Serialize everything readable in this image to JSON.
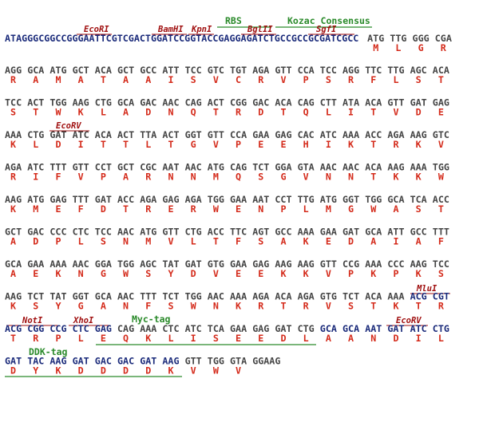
{
  "sequence_map": {
    "leader": {
      "sequence": "ATAGGGCGGCCGGGAATTCGTCGACTGGATCCGGTACCGAGGAGATCTGCCGCCGCGATCGCC",
      "codons": [
        "ATG",
        "TTG",
        "GGG",
        "CGA"
      ],
      "amino_acids": [
        "M",
        "L",
        "G",
        "R"
      ]
    },
    "rows": [
      {
        "codons": [
          "AGG",
          "GCA",
          "ATG",
          "GCT",
          "ACA",
          "GCT",
          "GCC",
          "ATT",
          "TCC",
          "GTC",
          "TGT",
          "AGA",
          "GTT",
          "CCA",
          "TCC",
          "AGG",
          "TTC",
          "TTG",
          "AGC",
          "ACA"
        ],
        "amino_acids": [
          "R",
          "A",
          "M",
          "A",
          "T",
          "A",
          "A",
          "I",
          "S",
          "V",
          "C",
          "R",
          "V",
          "P",
          "S",
          "R",
          "F",
          "L",
          "S",
          "T"
        ]
      },
      {
        "codons": [
          "TCC",
          "ACT",
          "TGG",
          "AAG",
          "CTG",
          "GCA",
          "GAC",
          "AAC",
          "CAG",
          "ACT",
          "CGG",
          "GAC",
          "ACA",
          "CAG",
          "CTT",
          "ATA",
          "ACA",
          "GTT",
          "GAT",
          "GAG"
        ],
        "amino_acids": [
          "S",
          "T",
          "W",
          "K",
          "L",
          "A",
          "D",
          "N",
          "Q",
          "T",
          "R",
          "D",
          "T",
          "Q",
          "L",
          "I",
          "T",
          "V",
          "D",
          "E"
        ]
      },
      {
        "codons": [
          "AAA",
          "CTG",
          "GAT",
          "ATC",
          "ACA",
          "ACT",
          "TTA",
          "ACT",
          "GGT",
          "GTT",
          "CCA",
          "GAA",
          "GAG",
          "CAC",
          "ATC",
          "AAA",
          "ACC",
          "AGA",
          "AAG",
          "GTC"
        ],
        "amino_acids": [
          "K",
          "L",
          "D",
          "I",
          "T",
          "T",
          "L",
          "T",
          "G",
          "V",
          "P",
          "E",
          "E",
          "H",
          "I",
          "K",
          "T",
          "R",
          "K",
          "V"
        ]
      },
      {
        "codons": [
          "AGA",
          "ATC",
          "TTT",
          "GTT",
          "CCT",
          "GCT",
          "CGC",
          "AAT",
          "AAC",
          "ATG",
          "CAG",
          "TCT",
          "GGA",
          "GTA",
          "AAC",
          "AAC",
          "ACA",
          "AAG",
          "AAA",
          "TGG"
        ],
        "amino_acids": [
          "R",
          "I",
          "F",
          "V",
          "P",
          "A",
          "R",
          "N",
          "N",
          "M",
          "Q",
          "S",
          "G",
          "V",
          "N",
          "N",
          "T",
          "K",
          "K",
          "W"
        ]
      },
      {
        "codons": [
          "AAG",
          "ATG",
          "GAG",
          "TTT",
          "GAT",
          "ACC",
          "AGA",
          "GAG",
          "AGA",
          "TGG",
          "GAA",
          "AAT",
          "CCT",
          "TTG",
          "ATG",
          "GGT",
          "TGG",
          "GCA",
          "TCA",
          "ACC"
        ],
        "amino_acids": [
          "K",
          "M",
          "E",
          "F",
          "D",
          "T",
          "R",
          "E",
          "R",
          "W",
          "E",
          "N",
          "P",
          "L",
          "M",
          "G",
          "W",
          "A",
          "S",
          "T"
        ]
      },
      {
        "codons": [
          "GCT",
          "GAC",
          "CCC",
          "CTC",
          "TCC",
          "AAC",
          "ATG",
          "GTT",
          "CTG",
          "ACC",
          "TTC",
          "AGT",
          "GCC",
          "AAA",
          "GAA",
          "GAT",
          "GCA",
          "ATT",
          "GCC",
          "TTT"
        ],
        "amino_acids": [
          "A",
          "D",
          "P",
          "L",
          "S",
          "N",
          "M",
          "V",
          "L",
          "T",
          "F",
          "S",
          "A",
          "K",
          "E",
          "D",
          "A",
          "I",
          "A",
          "F"
        ]
      },
      {
        "codons": [
          "GCA",
          "GAA",
          "AAA",
          "AAC",
          "GGA",
          "TGG",
          "AGC",
          "TAT",
          "GAT",
          "GTG",
          "GAA",
          "GAG",
          "AAG",
          "AAG",
          "GTT",
          "CCG",
          "AAA",
          "CCC",
          "AAG",
          "TCC"
        ],
        "amino_acids": [
          "A",
          "E",
          "K",
          "N",
          "G",
          "W",
          "S",
          "Y",
          "D",
          "V",
          "E",
          "E",
          "K",
          "K",
          "V",
          "P",
          "K",
          "P",
          "K",
          "S"
        ]
      },
      {
        "codons": [
          "AAG",
          "TCT",
          "TAT",
          "GGT",
          "GCA",
          "AAC",
          "TTT",
          "TCT",
          "TGG",
          "AAC",
          "AAA",
          "AGA",
          "ACA",
          "AGA",
          "GTG",
          "TCT",
          "ACA",
          "AAA",
          "ACG",
          "CGT"
        ],
        "amino_acids": [
          "K",
          "S",
          "Y",
          "G",
          "A",
          "N",
          "F",
          "S",
          "W",
          "N",
          "K",
          "R",
          "T",
          "R",
          "V",
          "S",
          "T",
          "K",
          "T",
          "R"
        ]
      },
      {
        "codons": [
          "ACG",
          "CGG",
          "CCG",
          "CTC",
          "GAG",
          "CAG",
          "AAA",
          "CTC",
          "ATC",
          "TCA",
          "GAA",
          "GAG",
          "GAT",
          "CTG",
          "GCA",
          "GCA",
          "AAT",
          "GAT",
          "ATC",
          "CTG"
        ],
        "amino_acids": [
          "T",
          "R",
          "P",
          "L",
          "E",
          "Q",
          "K",
          "L",
          "I",
          "S",
          "E",
          "E",
          "D",
          "L",
          "A",
          "A",
          "N",
          "D",
          "I",
          "L"
        ]
      },
      {
        "codons": [
          "GAT",
          "TAC",
          "AAG",
          "GAT",
          "GAC",
          "GAC",
          "GAT",
          "AAG",
          "GTT",
          "TGG",
          "GTA",
          "GGAAG"
        ],
        "amino_acids": [
          "D",
          "Y",
          "K",
          "D",
          "D",
          "D",
          "D",
          "K",
          "V",
          "W",
          "V"
        ]
      }
    ],
    "features": [
      "EcoRI",
      "BamHI",
      "KpnI",
      "RBS",
      "BglII",
      "Kozac Consensus",
      "SgfI",
      "EcoRV",
      "MluI",
      "NotI",
      "XhoI",
      "Myc-tag",
      "EcoRV",
      "DDK-tag"
    ]
  }
}
